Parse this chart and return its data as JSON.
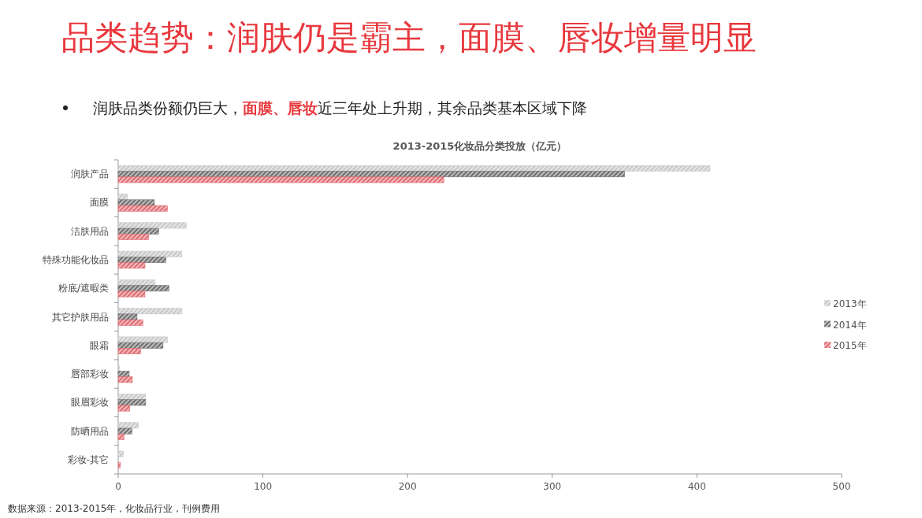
{
  "chart_data": {
    "type": "bar",
    "orientation": "horizontal",
    "title": "2013-2015化妆品分类投放（亿元）",
    "annotations": [
      "品类趋势：润肤仍是霸主，面膜、唇妆增量明显",
      "润肤品类份额仍巨大，**面膜、唇妆**近三年处上升期，其余品类基本区域下降",
      "数据来源：2013-2015年，化妆品行业，刊例费用"
    ],
    "categories": [
      "润肤产品",
      "面膜",
      "洁肤用品",
      "特殊功能化妆品",
      "粉底/遮暇类",
      "其它护肤用品",
      "眼霜",
      "唇部彩妆",
      "眼眉彩妆",
      "防晒用品",
      "彩妆-其它"
    ],
    "series": [
      {
        "name": "2013年",
        "color": "#c8c8c8",
        "values": [
          409,
          6.4,
          47,
          44,
          25.5,
          44,
          34,
          1,
          19,
          14,
          3.6
        ]
      },
      {
        "name": "2014年",
        "color": "#6e6e6e",
        "values": [
          350,
          25,
          28,
          33,
          35,
          13,
          31,
          7.6,
          19,
          9.6,
          0
        ]
      },
      {
        "name": "2015年",
        "color": "#e06a70",
        "values": [
          225,
          34,
          21,
          18.5,
          18.5,
          17,
          15.5,
          9.8,
          8,
          4,
          1.5
        ]
      }
    ],
    "xlim": [
      0,
      500
    ],
    "xticks": [
      0,
      100,
      200,
      300,
      400,
      500
    ],
    "legend": "right",
    "grid": false
  }
}
